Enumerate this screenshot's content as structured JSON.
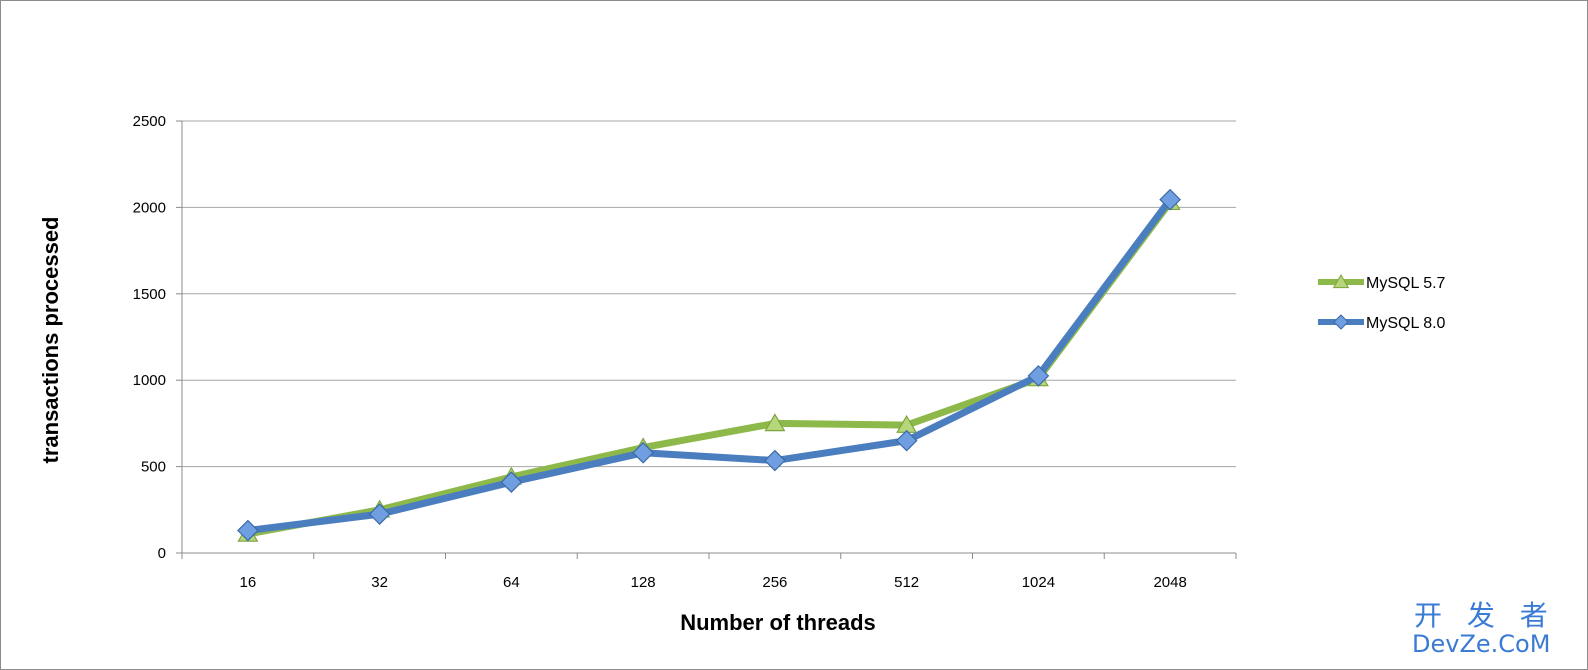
{
  "chart_data": {
    "type": "line",
    "title": "",
    "xlabel": "Number of threads",
    "ylabel": "transactions processed",
    "categories": [
      "16",
      "32",
      "64",
      "128",
      "256",
      "512",
      "1024",
      "2048"
    ],
    "ylim": [
      0,
      2500
    ],
    "yticks": [
      0,
      500,
      1000,
      1500,
      2000,
      2500
    ],
    "grid": "horizontal",
    "legend_position": "right",
    "series": [
      {
        "name": "MySQL 5.7",
        "color": "#8db84a",
        "marker": "triangle",
        "values": [
          110,
          250,
          440,
          610,
          750,
          740,
          1010,
          2030
        ]
      },
      {
        "name": "MySQL 8.0",
        "color": "#4a7ebf",
        "marker": "diamond",
        "values": [
          130,
          225,
          410,
          580,
          535,
          650,
          1025,
          2045
        ]
      }
    ]
  },
  "watermark": {
    "line1": "开 发 者",
    "line2": "DevZe.CoM"
  }
}
